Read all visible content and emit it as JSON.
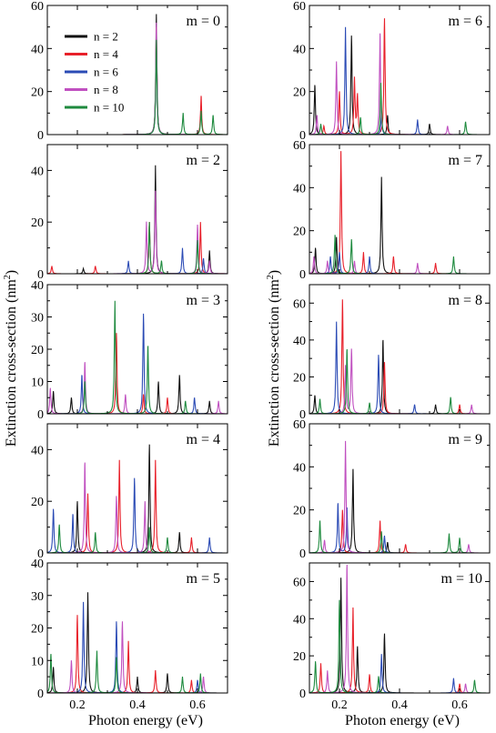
{
  "figure": {
    "xlabel": "Photon energy (eV)",
    "ylabel_main": "Extinction cross-section (nm",
    "ylabel_sup": "2",
    "ylabel_close": ")"
  },
  "legend": [
    {
      "label": "n = 2",
      "color": "#111111"
    },
    {
      "label": "n = 4",
      "color": "#e8202a"
    },
    {
      "label": "n = 6",
      "color": "#2b4bb5"
    },
    {
      "label": "n = 8",
      "color": "#c050c0"
    },
    {
      "label": "n = 10",
      "color": "#1e8a3e"
    }
  ],
  "colors": {
    "n2": "#111111",
    "n4": "#e8202a",
    "n6": "#2b4bb5",
    "n8": "#c050c0",
    "n10": "#1e8a3e"
  },
  "chart_data": [
    {
      "type": "line",
      "title": "m = 0",
      "xlim": [
        0.1,
        0.7
      ],
      "ylim": [
        0,
        60
      ],
      "yticks": [
        0,
        20,
        40,
        60
      ],
      "series": [
        {
          "name": "n = 2",
          "peaks": [
            [
              0.463,
              56
            ]
          ]
        },
        {
          "name": "n = 4",
          "peaks": [
            [
              0.463,
              50
            ],
            [
              0.612,
              18
            ]
          ]
        },
        {
          "name": "n = 6",
          "peaks": [
            [
              0.463,
              46
            ]
          ]
        },
        {
          "name": "n = 8",
          "peaks": [
            [
              0.463,
              52
            ]
          ]
        },
        {
          "name": "n = 10",
          "peaks": [
            [
              0.463,
              44
            ],
            [
              0.552,
              10
            ],
            [
              0.612,
              11
            ],
            [
              0.652,
              9
            ]
          ]
        }
      ]
    },
    {
      "type": "line",
      "title": "m = 6",
      "xlim": [
        0.1,
        0.7
      ],
      "ylim": [
        0,
        60
      ],
      "yticks": [
        0,
        20,
        40,
        60
      ],
      "series": [
        {
          "name": "n = 2",
          "peaks": [
            [
              0.118,
              23
            ],
            [
              0.24,
              46
            ],
            [
              0.36,
              9
            ],
            [
              0.5,
              5
            ]
          ]
        },
        {
          "name": "n = 4",
          "peaks": [
            [
              0.148,
              4
            ],
            [
              0.2,
              20
            ],
            [
              0.25,
              26
            ],
            [
              0.26,
              18
            ],
            [
              0.35,
              54
            ]
          ]
        },
        {
          "name": "n = 6",
          "peaks": [
            [
              0.22,
              50
            ],
            [
              0.34,
              10
            ],
            [
              0.46,
              7
            ]
          ]
        },
        {
          "name": "n = 8",
          "peaks": [
            [
              0.125,
              9
            ],
            [
              0.19,
              34
            ],
            [
              0.335,
              47
            ],
            [
              0.56,
              4
            ]
          ]
        },
        {
          "name": "n = 10",
          "peaks": [
            [
              0.138,
              5
            ],
            [
              0.27,
              8
            ],
            [
              0.338,
              24
            ],
            [
              0.62,
              6
            ]
          ]
        }
      ]
    },
    {
      "type": "line",
      "title": "m = 2",
      "xlim": [
        0.1,
        0.7
      ],
      "ylim": [
        0,
        50
      ],
      "yticks": [
        0,
        20,
        40
      ],
      "series": [
        {
          "name": "n = 2",
          "peaks": [
            [
              0.22,
              2
            ],
            [
              0.46,
              42
            ],
            [
              0.64,
              9
            ]
          ]
        },
        {
          "name": "n = 4",
          "peaks": [
            [
              0.115,
              3
            ],
            [
              0.26,
              3
            ],
            [
              0.44,
              20
            ],
            [
              0.61,
              20
            ]
          ]
        },
        {
          "name": "n = 6",
          "peaks": [
            [
              0.37,
              5
            ],
            [
              0.55,
              10
            ],
            [
              0.62,
              6
            ]
          ]
        },
        {
          "name": "n = 8",
          "peaks": [
            [
              0.43,
              20
            ],
            [
              0.46,
              32
            ],
            [
              0.6,
              19
            ],
            [
              0.64,
              5
            ]
          ]
        },
        {
          "name": "n = 10",
          "peaks": [
            [
              0.44,
              20
            ],
            [
              0.48,
              5
            ],
            [
              0.6,
              13
            ]
          ]
        }
      ]
    },
    {
      "type": "line",
      "title": "m = 7",
      "xlim": [
        0.1,
        0.7
      ],
      "ylim": [
        0,
        60
      ],
      "yticks": [
        0,
        20,
        40,
        60
      ],
      "series": [
        {
          "name": "n = 2",
          "peaks": [
            [
              0.12,
              12
            ],
            [
              0.19,
              17
            ],
            [
              0.34,
              45
            ]
          ]
        },
        {
          "name": "n = 4",
          "peaks": [
            [
              0.205,
              57
            ],
            [
              0.28,
              10
            ],
            [
              0.38,
              8
            ],
            [
              0.52,
              5
            ]
          ]
        },
        {
          "name": "n = 6",
          "peaks": [
            [
              0.17,
              8
            ],
            [
              0.2,
              10
            ],
            [
              0.3,
              8
            ]
          ]
        },
        {
          "name": "n = 8",
          "peaks": [
            [
              0.115,
              8
            ],
            [
              0.16,
              6
            ],
            [
              0.25,
              6
            ],
            [
              0.46,
              5
            ]
          ]
        },
        {
          "name": "n = 10",
          "peaks": [
            [
              0.185,
              18
            ],
            [
              0.24,
              16
            ],
            [
              0.58,
              8
            ]
          ]
        }
      ]
    },
    {
      "type": "line",
      "title": "m = 3",
      "xlim": [
        0.1,
        0.7
      ],
      "ylim": [
        0,
        40
      ],
      "yticks": [
        0,
        10,
        20,
        30,
        40
      ],
      "series": [
        {
          "name": "n = 2",
          "peaks": [
            [
              0.12,
              7
            ],
            [
              0.18,
              5
            ],
            [
              0.47,
              10
            ],
            [
              0.54,
              12
            ],
            [
              0.64,
              4
            ]
          ]
        },
        {
          "name": "n = 4",
          "peaks": [
            [
              0.33,
              25
            ],
            [
              0.42,
              6
            ],
            [
              0.5,
              5
            ]
          ]
        },
        {
          "name": "n = 6",
          "peaks": [
            [
              0.215,
              12
            ],
            [
              0.42,
              31
            ],
            [
              0.59,
              5
            ]
          ]
        },
        {
          "name": "n = 8",
          "peaks": [
            [
              0.11,
              8
            ],
            [
              0.225,
              16
            ],
            [
              0.36,
              6
            ],
            [
              0.67,
              4
            ]
          ]
        },
        {
          "name": "n = 10",
          "peaks": [
            [
              0.225,
              10
            ],
            [
              0.325,
              35
            ],
            [
              0.435,
              21
            ],
            [
              0.56,
              4
            ]
          ]
        }
      ]
    },
    {
      "type": "line",
      "title": "m = 8",
      "xlim": [
        0.1,
        0.7
      ],
      "ylim": [
        0,
        70
      ],
      "yticks": [
        0,
        20,
        40,
        60
      ],
      "series": [
        {
          "name": "n = 2",
          "peaks": [
            [
              0.118,
              10
            ],
            [
              0.345,
              40
            ],
            [
              0.52,
              5
            ]
          ]
        },
        {
          "name": "n = 4",
          "peaks": [
            [
              0.21,
              62
            ],
            [
              0.35,
              28
            ],
            [
              0.6,
              5
            ]
          ]
        },
        {
          "name": "n = 6",
          "peaks": [
            [
              0.19,
              50
            ],
            [
              0.33,
              32
            ],
            [
              0.45,
              5
            ]
          ]
        },
        {
          "name": "n = 8",
          "peaks": [
            [
              0.22,
              26
            ],
            [
              0.24,
              35
            ],
            [
              0.64,
              5
            ]
          ]
        },
        {
          "name": "n = 10",
          "peaks": [
            [
              0.135,
              8
            ],
            [
              0.225,
              35
            ],
            [
              0.3,
              6
            ],
            [
              0.57,
              9
            ]
          ]
        }
      ]
    },
    {
      "type": "line",
      "title": "m = 4",
      "xlim": [
        0.1,
        0.7
      ],
      "ylim": [
        0,
        50
      ],
      "yticks": [
        0,
        20,
        40
      ],
      "series": [
        {
          "name": "n = 2",
          "peaks": [
            [
              0.2,
              20
            ],
            [
              0.44,
              42
            ],
            [
              0.54,
              8
            ]
          ]
        },
        {
          "name": "n = 4",
          "peaks": [
            [
              0.235,
              23
            ],
            [
              0.34,
              36
            ],
            [
              0.46,
              36
            ],
            [
              0.58,
              6
            ]
          ]
        },
        {
          "name": "n = 6",
          "peaks": [
            [
              0.12,
              17
            ],
            [
              0.185,
              15
            ],
            [
              0.39,
              29
            ],
            [
              0.64,
              6
            ]
          ]
        },
        {
          "name": "n = 8",
          "peaks": [
            [
              0.225,
              35
            ],
            [
              0.33,
              22
            ],
            [
              0.425,
              20
            ]
          ]
        },
        {
          "name": "n = 10",
          "peaks": [
            [
              0.14,
              11
            ],
            [
              0.26,
              8
            ],
            [
              0.44,
              10
            ],
            [
              0.5,
              6
            ]
          ]
        }
      ]
    },
    {
      "type": "line",
      "title": "m = 9",
      "xlim": [
        0.1,
        0.7
      ],
      "ylim": [
        0,
        60
      ],
      "yticks": [
        0,
        20,
        40,
        60
      ],
      "series": [
        {
          "name": "n = 2",
          "peaks": [
            [
              0.245,
              39
            ],
            [
              0.36,
              5
            ]
          ]
        },
        {
          "name": "n = 4",
          "peaks": [
            [
              0.21,
              20
            ],
            [
              0.335,
              15
            ],
            [
              0.42,
              4
            ]
          ]
        },
        {
          "name": "n = 6",
          "peaks": [
            [
              0.195,
              23
            ],
            [
              0.225,
              21
            ],
            [
              0.35,
              8
            ]
          ]
        },
        {
          "name": "n = 8",
          "peaks": [
            [
              0.22,
              52
            ],
            [
              0.15,
              6
            ],
            [
              0.63,
              4
            ]
          ]
        },
        {
          "name": "n = 10",
          "peaks": [
            [
              0.135,
              15
            ],
            [
              0.34,
              10
            ],
            [
              0.565,
              9
            ],
            [
              0.6,
              7
            ]
          ]
        }
      ]
    },
    {
      "type": "line",
      "title": "m = 5",
      "xlim": [
        0.1,
        0.7
      ],
      "ylim": [
        0,
        40
      ],
      "yticks": [
        0,
        10,
        20,
        30,
        40
      ],
      "series": [
        {
          "name": "n = 2",
          "peaks": [
            [
              0.12,
              8
            ],
            [
              0.235,
              31
            ],
            [
              0.4,
              5
            ],
            [
              0.5,
              6
            ]
          ]
        },
        {
          "name": "n = 4",
          "peaks": [
            [
              0.2,
              24
            ],
            [
              0.37,
              16
            ],
            [
              0.46,
              7
            ],
            [
              0.58,
              4
            ]
          ]
        },
        {
          "name": "n = 6",
          "peaks": [
            [
              0.22,
              28
            ],
            [
              0.33,
              22
            ],
            [
              0.6,
              4
            ]
          ]
        },
        {
          "name": "n = 8",
          "peaks": [
            [
              0.18,
              10
            ],
            [
              0.35,
              22
            ],
            [
              0.62,
              5
            ]
          ]
        },
        {
          "name": "n = 10",
          "peaks": [
            [
              0.112,
              12
            ],
            [
              0.265,
              13
            ],
            [
              0.33,
              11
            ],
            [
              0.55,
              5
            ],
            [
              0.61,
              6
            ]
          ]
        }
      ]
    },
    {
      "type": "line",
      "title": "m = 10",
      "xlim": [
        0.1,
        0.7
      ],
      "ylim": [
        0,
        70
      ],
      "yticks": [
        0,
        20,
        40,
        60
      ],
      "series": [
        {
          "name": "n = 2",
          "peaks": [
            [
              0.205,
              62
            ],
            [
              0.26,
              25
            ],
            [
              0.35,
              32
            ]
          ]
        },
        {
          "name": "n = 4",
          "peaks": [
            [
              0.138,
              16
            ],
            [
              0.245,
              46
            ],
            [
              0.3,
              10
            ],
            [
              0.6,
              5
            ]
          ]
        },
        {
          "name": "n = 6",
          "peaks": [
            [
              0.34,
              21
            ],
            [
              0.58,
              8
            ]
          ]
        },
        {
          "name": "n = 8",
          "peaks": [
            [
              0.225,
              69
            ],
            [
              0.16,
              12
            ],
            [
              0.62,
              5
            ]
          ]
        },
        {
          "name": "n = 10",
          "peaks": [
            [
              0.12,
              17
            ],
            [
              0.2,
              50
            ],
            [
              0.33,
              9
            ],
            [
              0.65,
              7
            ]
          ]
        }
      ]
    }
  ]
}
